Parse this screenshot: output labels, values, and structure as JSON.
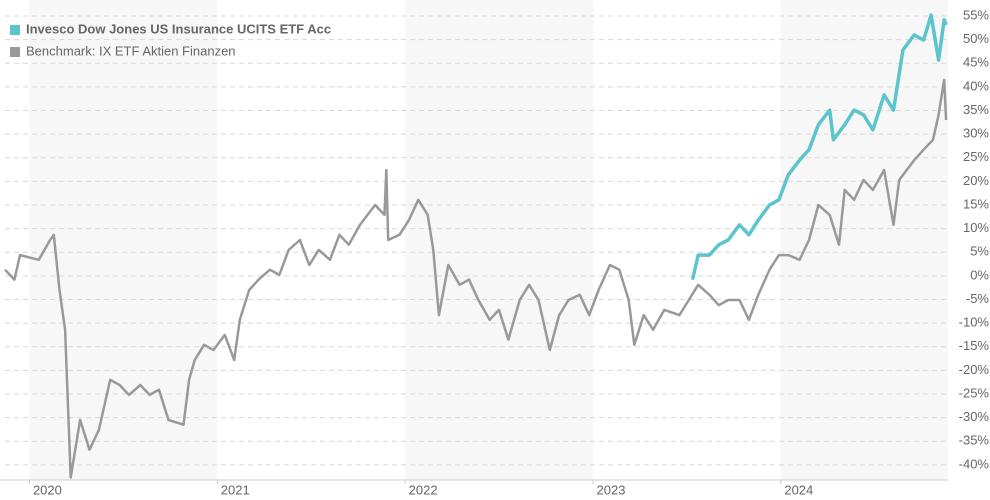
{
  "chart_data": {
    "type": "line",
    "legend": "top-left",
    "grid": true,
    "xlim": [
      2019.87,
      2024.89
    ],
    "xticks": [
      2020,
      2021,
      2022,
      2023,
      2024
    ],
    "ylim": [
      -43,
      57
    ],
    "yticks": [
      {
        "value": 55,
        "label": "55%"
      },
      {
        "value": 50,
        "label": "50%"
      },
      {
        "value": 45,
        "label": "45%"
      },
      {
        "value": 40,
        "label": "40%"
      },
      {
        "value": 35,
        "label": "35%"
      },
      {
        "value": 30,
        "label": "30%"
      },
      {
        "value": 25,
        "label": "25%"
      },
      {
        "value": 20,
        "label": "20%"
      },
      {
        "value": 15,
        "label": "15%"
      },
      {
        "value": 10,
        "label": "10%"
      },
      {
        "value": 5,
        "label": "5%"
      },
      {
        "value": 0,
        "label": "0%"
      },
      {
        "value": -5,
        "label": "-5%"
      },
      {
        "value": -10,
        "label": "-10%"
      },
      {
        "value": -15,
        "label": "-15%"
      },
      {
        "value": -20,
        "label": "-20%"
      },
      {
        "value": -25,
        "label": "-25%"
      },
      {
        "value": -30,
        "label": "-30%"
      },
      {
        "value": -35,
        "label": "-35%"
      },
      {
        "value": -40,
        "label": "-40%"
      }
    ],
    "series": [
      {
        "name": "Invesco Dow Jones US Insurance UCITS ETF Acc",
        "color": "#5bc4cc",
        "x": [
          2023.53,
          2023.56,
          2023.62,
          2023.67,
          2023.72,
          2023.78,
          2023.83,
          2023.88,
          2023.94,
          2023.99,
          2024.04,
          2024.1,
          2024.15,
          2024.2,
          2024.26,
          2024.28,
          2024.34,
          2024.39,
          2024.44,
          2024.49,
          2024.55,
          2024.6,
          2024.65,
          2024.71,
          2024.76,
          2024.8,
          2024.84,
          2024.87,
          2024.88
        ],
        "values": [
          -0.8,
          4.4,
          4.4,
          6.6,
          7.6,
          10.8,
          8.7,
          11.8,
          15.0,
          16.1,
          21.4,
          24.5,
          26.7,
          32.0,
          35.1,
          28.8,
          32.0,
          35.1,
          34.1,
          30.9,
          38.3,
          35.1,
          47.8,
          51.0,
          49.9,
          55.2,
          45.7,
          54.2,
          53.1
        ]
      },
      {
        "name": "Benchmark: IX ETF Aktien Finanzen",
        "color": "#999999",
        "x": [
          2019.87,
          2019.92,
          2019.95,
          2020.05,
          2020.11,
          2020.13,
          2020.16,
          2020.19,
          2020.21,
          2020.22,
          2020.27,
          2020.32,
          2020.37,
          2020.43,
          2020.48,
          2020.53,
          2020.59,
          2020.64,
          2020.69,
          2020.74,
          2020.82,
          2020.85,
          2020.88,
          2020.93,
          2020.98,
          2021.04,
          2021.09,
          2021.12,
          2021.17,
          2021.22,
          2021.28,
          2021.33,
          2021.38,
          2021.44,
          2021.49,
          2021.54,
          2021.6,
          2021.65,
          2021.7,
          2021.76,
          2021.84,
          2021.89,
          2021.9,
          2021.91,
          2021.97,
          2022.02,
          2022.07,
          2022.12,
          2022.15,
          2022.18,
          2022.23,
          2022.29,
          2022.34,
          2022.39,
          2022.45,
          2022.5,
          2022.55,
          2022.61,
          2022.66,
          2022.71,
          2022.77,
          2022.82,
          2022.87,
          2022.93,
          2022.98,
          2023.03,
          2023.09,
          2023.14,
          2023.19,
          2023.22,
          2023.27,
          2023.32,
          2023.38,
          2023.46,
          2023.51,
          2023.56,
          2023.62,
          2023.67,
          2023.72,
          2023.78,
          2023.83,
          2023.88,
          2023.94,
          2023.99,
          2024.04,
          2024.1,
          2024.15,
          2024.2,
          2024.26,
          2024.31,
          2024.34,
          2024.39,
          2024.44,
          2024.49,
          2024.55,
          2024.6,
          2024.63,
          2024.71,
          2024.76,
          2024.81,
          2024.84,
          2024.87,
          2024.88
        ],
        "values": [
          1.3,
          -0.8,
          4.4,
          3.4,
          7.6,
          8.7,
          -3.0,
          -11.4,
          -32.6,
          -42.7,
          -30.5,
          -36.8,
          -32.6,
          -22.0,
          -23.1,
          -25.2,
          -23.1,
          -25.2,
          -24.1,
          -30.5,
          -31.5,
          -22.0,
          -17.8,
          -14.6,
          -15.7,
          -12.5,
          -17.8,
          -9.3,
          -3.0,
          -0.8,
          1.3,
          0.2,
          5.5,
          7.6,
          2.3,
          5.5,
          3.4,
          8.7,
          6.6,
          10.8,
          15.0,
          12.9,
          22.4,
          7.6,
          8.7,
          11.8,
          16.1,
          12.9,
          5.5,
          -8.3,
          2.3,
          -1.9,
          -0.8,
          -5.1,
          -9.3,
          -7.2,
          -13.5,
          -5.1,
          -1.9,
          -5.1,
          -15.7,
          -8.3,
          -5.1,
          -4.0,
          -8.3,
          -3.0,
          2.3,
          1.3,
          -5.1,
          -14.6,
          -8.3,
          -11.4,
          -7.2,
          -8.3,
          -5.1,
          -1.9,
          -4.0,
          -6.2,
          -5.1,
          -5.1,
          -9.3,
          -4.0,
          1.3,
          4.4,
          4.4,
          3.4,
          7.6,
          15.0,
          12.9,
          6.6,
          18.2,
          16.1,
          20.3,
          18.2,
          22.4,
          10.8,
          20.3,
          24.5,
          26.7,
          28.8,
          34.1,
          41.5,
          33.0
        ]
      }
    ]
  }
}
